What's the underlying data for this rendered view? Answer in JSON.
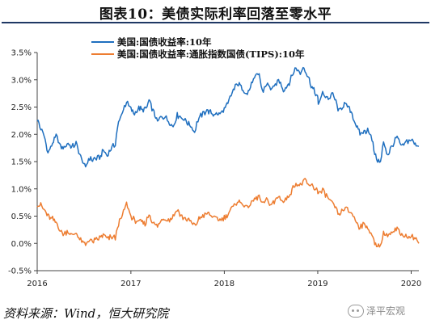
{
  "figure": {
    "title": "图表10：美债实际利率回落至零水平",
    "source": "资料来源：Wind，恒大研究院",
    "watermark": "泽平宏观",
    "watermark_icon": "wechat-icon"
  },
  "chart_data": {
    "type": "line",
    "title": "",
    "xlabel": "",
    "ylabel": "",
    "x_ticks": [
      "2016",
      "2017",
      "2018",
      "2019",
      "2020"
    ],
    "y_ticks": [
      "3.5%",
      "3.0%",
      "2.5%",
      "2.0%",
      "1.5%",
      "1.0%",
      "0.5%",
      "0.0%",
      "-0.5%"
    ],
    "xlim": [
      "2016-01-01",
      "2020-01-31"
    ],
    "ylim": [
      -0.5,
      3.5
    ],
    "grid": false,
    "legend_position": "top-left",
    "series": [
      {
        "name": "美国:国债收益率:10年",
        "color": "#1f6fbf",
        "points": [
          [
            "2016-01-01",
            2.27
          ],
          [
            "2016-01-15",
            2.1
          ],
          [
            "2016-02-01",
            1.92
          ],
          [
            "2016-02-12",
            1.66
          ],
          [
            "2016-03-01",
            1.83
          ],
          [
            "2016-03-15",
            1.96
          ],
          [
            "2016-04-01",
            1.78
          ],
          [
            "2016-04-15",
            1.76
          ],
          [
            "2016-05-01",
            1.83
          ],
          [
            "2016-05-15",
            1.75
          ],
          [
            "2016-06-01",
            1.83
          ],
          [
            "2016-06-15",
            1.62
          ],
          [
            "2016-07-01",
            1.46
          ],
          [
            "2016-07-08",
            1.37
          ],
          [
            "2016-07-20",
            1.57
          ],
          [
            "2016-08-01",
            1.53
          ],
          [
            "2016-08-15",
            1.56
          ],
          [
            "2016-09-01",
            1.58
          ],
          [
            "2016-09-15",
            1.7
          ],
          [
            "2016-10-01",
            1.6
          ],
          [
            "2016-10-15",
            1.75
          ],
          [
            "2016-11-01",
            1.82
          ],
          [
            "2016-11-10",
            2.15
          ],
          [
            "2016-11-25",
            2.36
          ],
          [
            "2016-12-15",
            2.6
          ],
          [
            "2017-01-01",
            2.45
          ],
          [
            "2017-01-15",
            2.38
          ],
          [
            "2017-02-01",
            2.48
          ],
          [
            "2017-02-15",
            2.45
          ],
          [
            "2017-03-01",
            2.46
          ],
          [
            "2017-03-13",
            2.62
          ],
          [
            "2017-04-01",
            2.38
          ],
          [
            "2017-04-15",
            2.24
          ],
          [
            "2017-05-01",
            2.32
          ],
          [
            "2017-05-15",
            2.33
          ],
          [
            "2017-06-01",
            2.21
          ],
          [
            "2017-06-15",
            2.16
          ],
          [
            "2017-07-01",
            2.35
          ],
          [
            "2017-07-15",
            2.33
          ],
          [
            "2017-08-01",
            2.26
          ],
          [
            "2017-08-15",
            2.2
          ],
          [
            "2017-09-07",
            2.05
          ],
          [
            "2017-09-20",
            2.27
          ],
          [
            "2017-10-01",
            2.33
          ],
          [
            "2017-10-25",
            2.44
          ],
          [
            "2017-11-15",
            2.37
          ],
          [
            "2017-12-01",
            2.37
          ],
          [
            "2017-12-15",
            2.36
          ],
          [
            "2018-01-01",
            2.46
          ],
          [
            "2018-01-15",
            2.55
          ],
          [
            "2018-02-01",
            2.77
          ],
          [
            "2018-02-21",
            2.94
          ],
          [
            "2018-03-15",
            2.82
          ],
          [
            "2018-04-01",
            2.74
          ],
          [
            "2018-04-25",
            3.01
          ],
          [
            "2018-05-17",
            3.11
          ],
          [
            "2018-05-29",
            2.78
          ],
          [
            "2018-06-15",
            2.92
          ],
          [
            "2018-07-01",
            2.85
          ],
          [
            "2018-07-15",
            2.86
          ],
          [
            "2018-08-01",
            3.0
          ],
          [
            "2018-08-20",
            2.82
          ],
          [
            "2018-09-01",
            2.86
          ],
          [
            "2018-09-15",
            2.99
          ],
          [
            "2018-10-08",
            3.23
          ],
          [
            "2018-10-25",
            3.12
          ],
          [
            "2018-11-08",
            3.24
          ],
          [
            "2018-11-25",
            3.05
          ],
          [
            "2018-12-10",
            2.85
          ],
          [
            "2018-12-31",
            2.69
          ],
          [
            "2019-01-03",
            2.56
          ],
          [
            "2019-01-20",
            2.75
          ],
          [
            "2019-02-15",
            2.66
          ],
          [
            "2019-03-01",
            2.75
          ],
          [
            "2019-03-25",
            2.42
          ],
          [
            "2019-04-15",
            2.56
          ],
          [
            "2019-05-01",
            2.5
          ],
          [
            "2019-05-15",
            2.39
          ],
          [
            "2019-06-01",
            2.14
          ],
          [
            "2019-06-15",
            2.02
          ],
          [
            "2019-07-01",
            2.03
          ],
          [
            "2019-07-15",
            2.1
          ],
          [
            "2019-08-01",
            1.9
          ],
          [
            "2019-08-15",
            1.58
          ],
          [
            "2019-09-03",
            1.47
          ],
          [
            "2019-09-15",
            1.85
          ],
          [
            "2019-10-01",
            1.63
          ],
          [
            "2019-10-15",
            1.76
          ],
          [
            "2019-11-07",
            1.94
          ],
          [
            "2019-11-25",
            1.76
          ],
          [
            "2019-12-15",
            1.87
          ],
          [
            "2020-01-01",
            1.92
          ],
          [
            "2020-01-10",
            1.85
          ],
          [
            "2020-01-20",
            1.8
          ],
          [
            "2020-01-31",
            1.78
          ]
        ]
      },
      {
        "name": "美国:国债收益率:通胀指数国债(TIPS):10年",
        "color": "#ed7d31",
        "points": [
          [
            "2016-01-01",
            0.72
          ],
          [
            "2016-01-15",
            0.7
          ],
          [
            "2016-02-01",
            0.58
          ],
          [
            "2016-02-12",
            0.5
          ],
          [
            "2016-03-01",
            0.44
          ],
          [
            "2016-03-15",
            0.38
          ],
          [
            "2016-04-01",
            0.24
          ],
          [
            "2016-04-15",
            0.17
          ],
          [
            "2016-05-01",
            0.22
          ],
          [
            "2016-05-15",
            0.14
          ],
          [
            "2016-06-01",
            0.18
          ],
          [
            "2016-06-15",
            0.08
          ],
          [
            "2016-07-01",
            0.0
          ],
          [
            "2016-07-08",
            -0.04
          ],
          [
            "2016-07-20",
            0.08
          ],
          [
            "2016-08-01",
            0.03
          ],
          [
            "2016-08-15",
            0.05
          ],
          [
            "2016-09-01",
            0.1
          ],
          [
            "2016-09-15",
            0.16
          ],
          [
            "2016-10-01",
            0.08
          ],
          [
            "2016-10-15",
            0.12
          ],
          [
            "2016-11-01",
            0.1
          ],
          [
            "2016-11-10",
            0.3
          ],
          [
            "2016-11-25",
            0.48
          ],
          [
            "2016-12-15",
            0.72
          ],
          [
            "2017-01-01",
            0.5
          ],
          [
            "2017-01-15",
            0.42
          ],
          [
            "2017-02-01",
            0.4
          ],
          [
            "2017-02-15",
            0.38
          ],
          [
            "2017-03-01",
            0.38
          ],
          [
            "2017-03-13",
            0.55
          ],
          [
            "2017-04-01",
            0.35
          ],
          [
            "2017-04-15",
            0.3
          ],
          [
            "2017-05-01",
            0.44
          ],
          [
            "2017-05-15",
            0.46
          ],
          [
            "2017-06-01",
            0.42
          ],
          [
            "2017-06-15",
            0.5
          ],
          [
            "2017-07-01",
            0.62
          ],
          [
            "2017-07-15",
            0.5
          ],
          [
            "2017-08-01",
            0.45
          ],
          [
            "2017-08-15",
            0.42
          ],
          [
            "2017-09-07",
            0.32
          ],
          [
            "2017-09-20",
            0.42
          ],
          [
            "2017-10-01",
            0.48
          ],
          [
            "2017-10-25",
            0.55
          ],
          [
            "2017-11-15",
            0.5
          ],
          [
            "2017-12-01",
            0.45
          ],
          [
            "2017-12-15",
            0.42
          ],
          [
            "2018-01-01",
            0.48
          ],
          [
            "2018-01-15",
            0.55
          ],
          [
            "2018-02-01",
            0.65
          ],
          [
            "2018-02-21",
            0.78
          ],
          [
            "2018-03-15",
            0.72
          ],
          [
            "2018-04-01",
            0.65
          ],
          [
            "2018-04-25",
            0.78
          ],
          [
            "2018-05-17",
            0.88
          ],
          [
            "2018-05-29",
            0.72
          ],
          [
            "2018-06-15",
            0.8
          ],
          [
            "2018-07-01",
            0.72
          ],
          [
            "2018-07-15",
            0.75
          ],
          [
            "2018-08-01",
            0.88
          ],
          [
            "2018-08-20",
            0.75
          ],
          [
            "2018-09-01",
            0.82
          ],
          [
            "2018-09-15",
            0.92
          ],
          [
            "2018-10-08",
            1.1
          ],
          [
            "2018-10-25",
            1.05
          ],
          [
            "2018-11-08",
            1.15
          ],
          [
            "2018-11-25",
            1.08
          ],
          [
            "2018-12-10",
            1.05
          ],
          [
            "2018-12-31",
            0.98
          ],
          [
            "2019-01-03",
            0.92
          ],
          [
            "2019-01-20",
            0.96
          ],
          [
            "2019-02-15",
            0.8
          ],
          [
            "2019-03-01",
            0.72
          ],
          [
            "2019-03-25",
            0.52
          ],
          [
            "2019-04-15",
            0.65
          ],
          [
            "2019-05-01",
            0.6
          ],
          [
            "2019-05-15",
            0.55
          ],
          [
            "2019-06-01",
            0.38
          ],
          [
            "2019-06-15",
            0.3
          ],
          [
            "2019-07-01",
            0.34
          ],
          [
            "2019-07-15",
            0.3
          ],
          [
            "2019-08-01",
            0.12
          ],
          [
            "2019-08-15",
            0.0
          ],
          [
            "2019-09-03",
            -0.06
          ],
          [
            "2019-09-15",
            0.2
          ],
          [
            "2019-10-01",
            0.14
          ],
          [
            "2019-10-15",
            0.16
          ],
          [
            "2019-11-07",
            0.26
          ],
          [
            "2019-11-25",
            0.16
          ],
          [
            "2019-12-15",
            0.12
          ],
          [
            "2020-01-01",
            0.16
          ],
          [
            "2020-01-10",
            0.1
          ],
          [
            "2020-01-20",
            0.08
          ],
          [
            "2020-01-31",
            0.0
          ]
        ]
      }
    ]
  }
}
